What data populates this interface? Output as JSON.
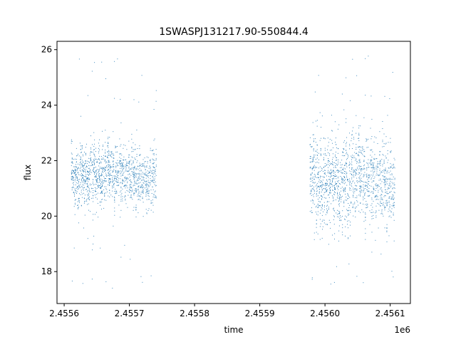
{
  "chart_data": {
    "type": "scatter",
    "title": "1SWASPJ131217.90-550844.4",
    "xlabel": "time",
    "ylabel": "flux",
    "x_offset_label": "1e6",
    "xlim": [
      2455589.0,
      2456131.0
    ],
    "ylim": [
      16.85,
      26.3
    ],
    "xticks": [
      2455600,
      2455700,
      2455800,
      2455900,
      2456000,
      2456100
    ],
    "xtick_labels": [
      "2.4556",
      "2.4557",
      "2.4558",
      "2.4559",
      "2.4560",
      "2.4561"
    ],
    "yticks": [
      18,
      20,
      22,
      24,
      26
    ],
    "ytick_labels": [
      "18",
      "20",
      "22",
      "24",
      "26"
    ],
    "grid": false,
    "marker_color": "#1f77b4",
    "series": [
      {
        "segments": [
          {
            "x_range": [
              2455611,
              2455742
            ],
            "center": 21.5,
            "spread": 1.1,
            "outlier_range": [
              17.2,
              25.8
            ]
          },
          {
            "x_range": [
              2455977,
              2456108
            ],
            "center": 21.3,
            "spread": 1.6,
            "outlier_range": [
              17.4,
              25.9
            ]
          }
        ]
      }
    ]
  }
}
